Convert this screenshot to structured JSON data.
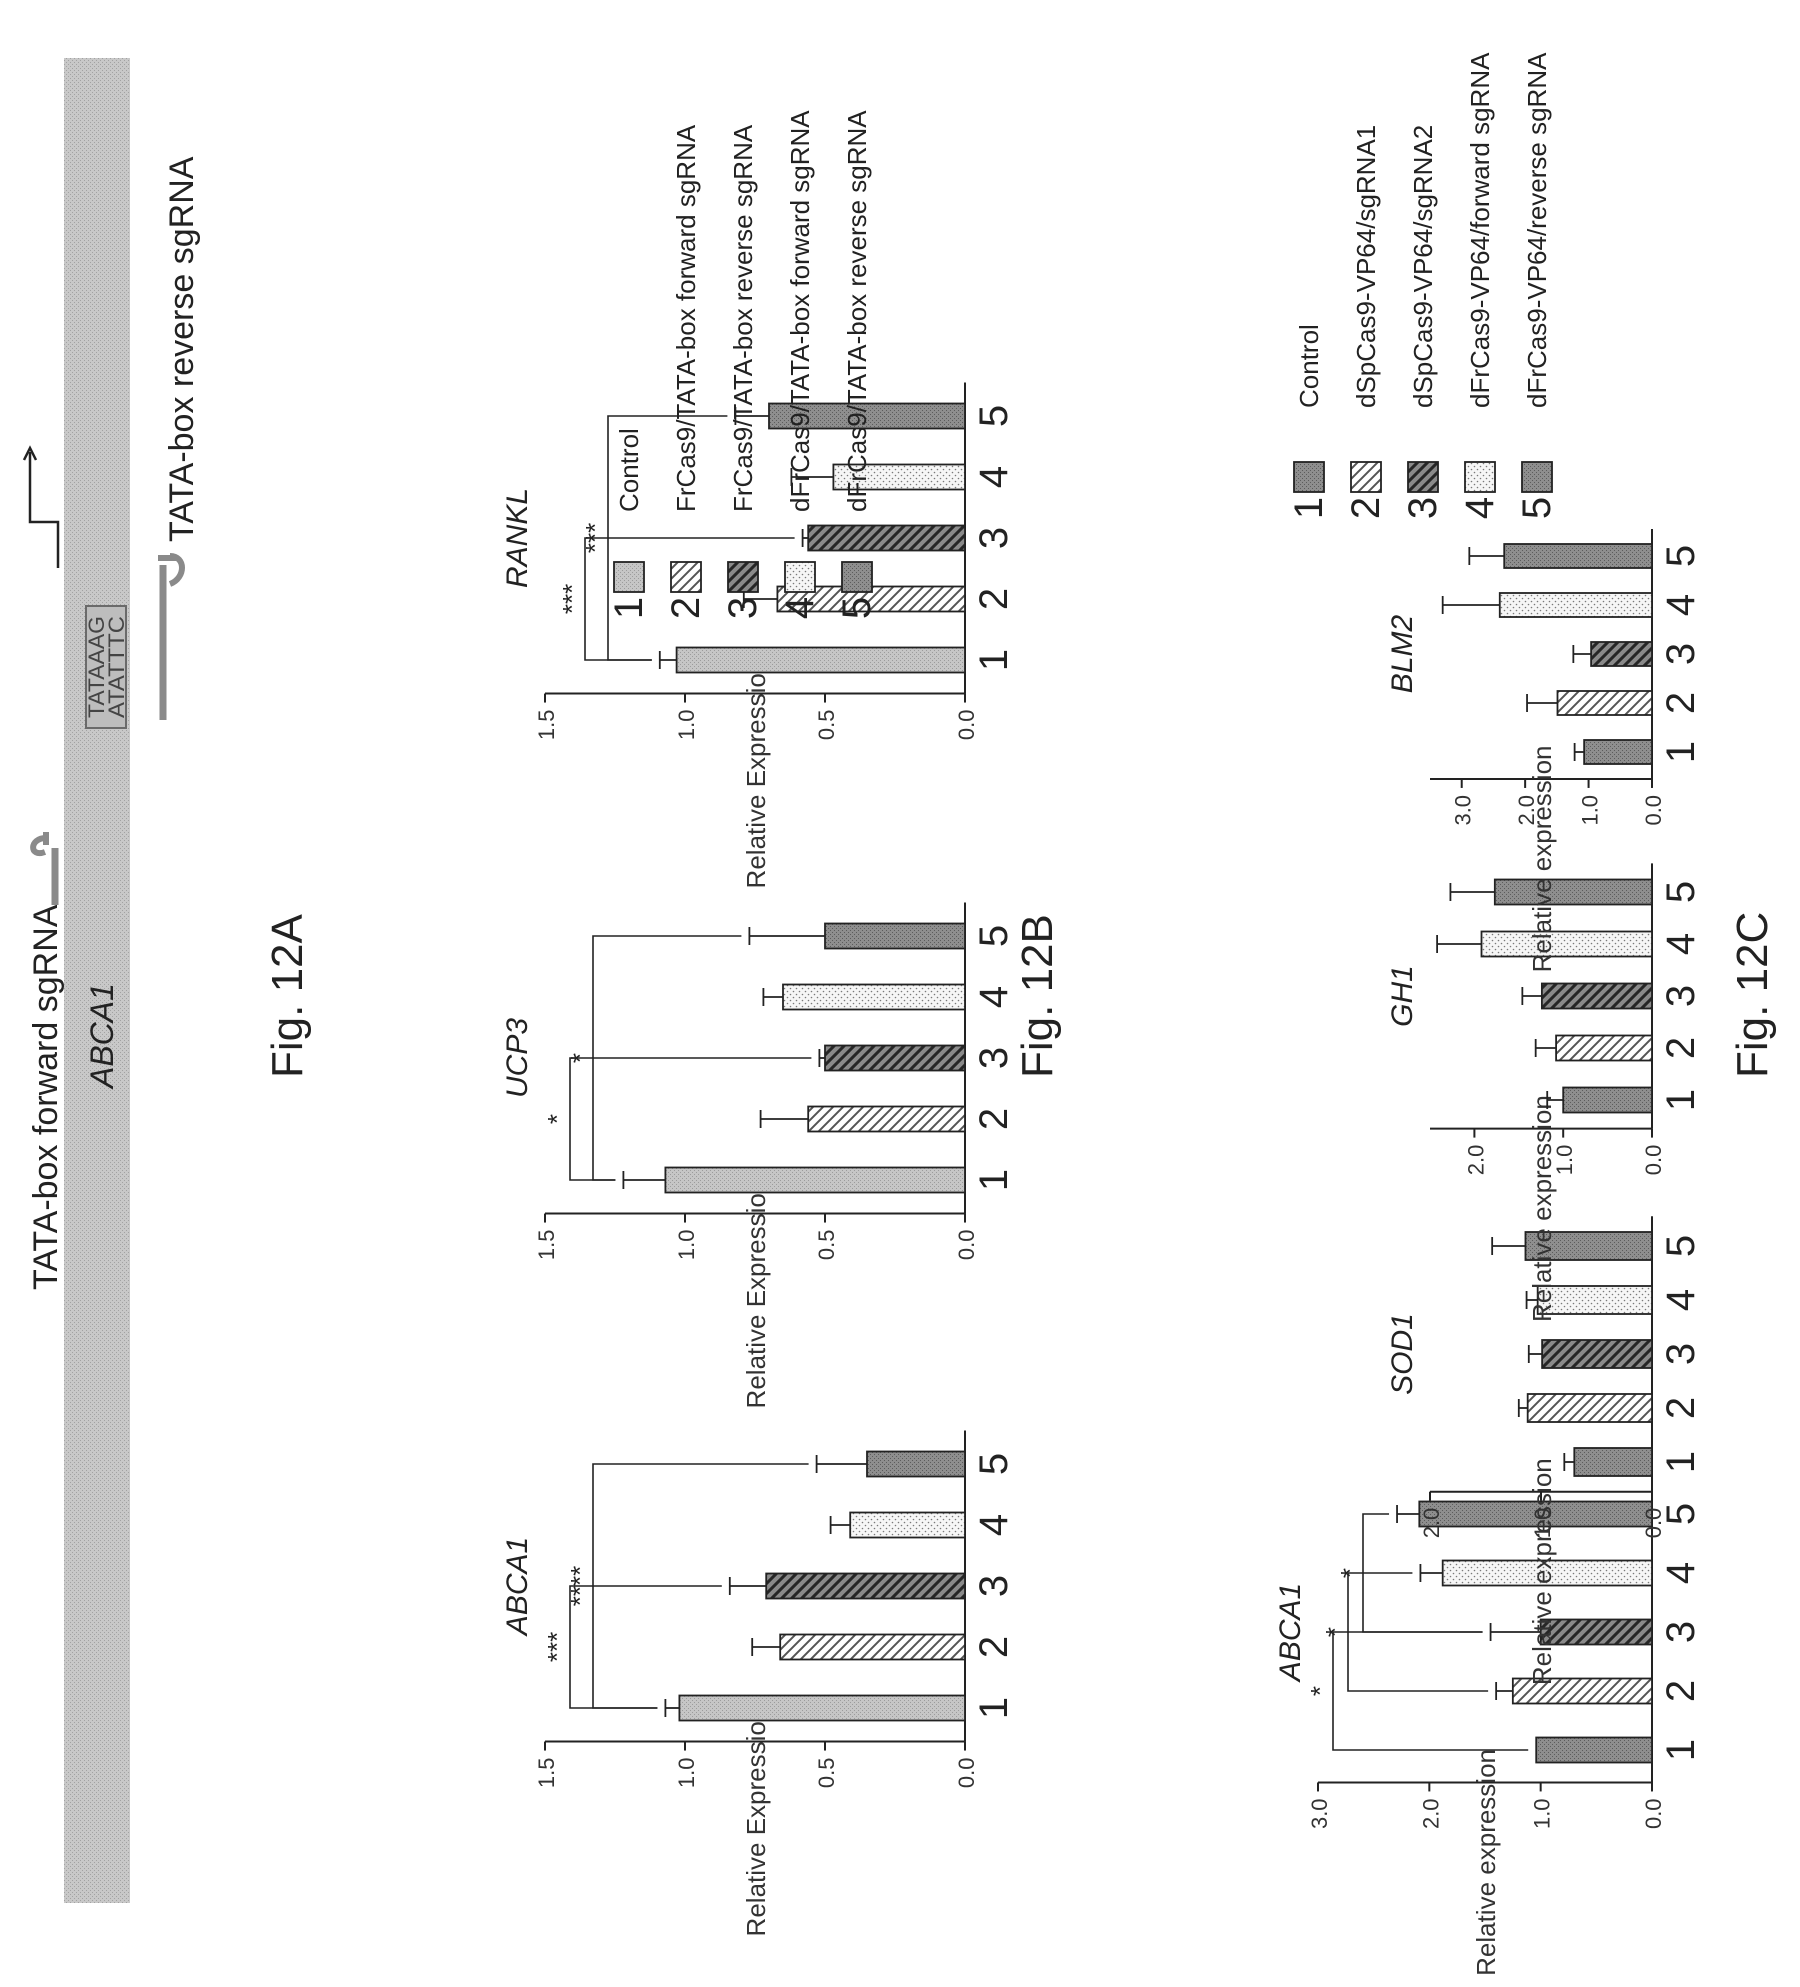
{
  "fig12a": {
    "forward_label": "TATA-box forward sgRNA",
    "gene_label": "ABCA1",
    "seq_top": "TATAAAG",
    "seq_bottom": "ATATTTC",
    "reverse_label": "TATA-box reverse sgRNA",
    "caption": "Fig. 12A"
  },
  "fig12b": {
    "caption": "Fig. 12B",
    "legend": [
      {
        "num": "1",
        "label": "Control",
        "pattern": "light"
      },
      {
        "num": "2",
        "label": "FrCas9/TATA-box forward sgRNA",
        "pattern": "hatch"
      },
      {
        "num": "3",
        "label": "FrCas9/TATA-box reverse sgRNA",
        "pattern": "darkhatch"
      },
      {
        "num": "4",
        "label": "dFrCas9/TATA-box forward sgRNA",
        "pattern": "dots"
      },
      {
        "num": "5",
        "label": "dFrCas9/TATA-box reverse sgRNA",
        "pattern": "dark"
      }
    ]
  },
  "fig12c": {
    "caption": "Fig. 12C",
    "legend": [
      {
        "num": "1",
        "label": "Control",
        "pattern": "dark"
      },
      {
        "num": "2",
        "label": "dSpCas9-VP64/sgRNA1",
        "pattern": "hatch"
      },
      {
        "num": "3",
        "label": "dSpCas9-VP64/sgRNA2",
        "pattern": "darkhatch"
      },
      {
        "num": "4",
        "label": "dFrCas9-VP64/forward sgRNA",
        "pattern": "dots"
      },
      {
        "num": "5",
        "label": "dFrCas9-VP64/reverse sgRNA",
        "pattern": "dark"
      }
    ]
  },
  "chart_data": [
    {
      "panel": "12B",
      "type": "bar",
      "title": "ABCA1",
      "ylabel": "Relative Expression",
      "categories": [
        "1",
        "2",
        "3",
        "4",
        "5"
      ],
      "values": [
        1.02,
        0.66,
        0.71,
        0.41,
        0.35
      ],
      "errors": [
        0.05,
        0.1,
        0.13,
        0.07,
        0.18
      ],
      "patterns": [
        "light",
        "hatch",
        "darkhatch",
        "dots",
        "dark"
      ],
      "ylim": [
        0,
        1.5
      ],
      "yticks": [
        "0.0",
        "0.5",
        "1.0",
        "1.5"
      ],
      "significance": [
        {
          "label": "***",
          "from": 1,
          "to": 3
        },
        {
          "label": "****",
          "from": 1,
          "to": 5
        }
      ]
    },
    {
      "panel": "12B",
      "type": "bar",
      "title": "UCP3",
      "ylabel": "Relative Expression",
      "categories": [
        "1",
        "2",
        "3",
        "4",
        "5"
      ],
      "values": [
        1.07,
        0.56,
        0.5,
        0.65,
        0.5
      ],
      "errors": [
        0.15,
        0.17,
        0.02,
        0.07,
        0.27
      ],
      "patterns": [
        "light",
        "hatch",
        "darkhatch",
        "dots",
        "dark"
      ],
      "ylim": [
        0,
        1.5
      ],
      "yticks": [
        "0.0",
        "0.5",
        "1.0",
        "1.5"
      ],
      "significance": [
        {
          "label": "*",
          "from": 1,
          "to": 3
        },
        {
          "label": "*",
          "from": 1,
          "to": 5
        }
      ]
    },
    {
      "panel": "12B",
      "type": "bar",
      "title": "RANKL",
      "ylabel": "Relative Expression",
      "categories": [
        "1",
        "2",
        "3",
        "4",
        "5"
      ],
      "values": [
        1.03,
        0.67,
        0.56,
        0.47,
        0.7
      ],
      "errors": [
        0.06,
        0.12,
        0.02,
        0.15,
        0.12
      ],
      "patterns": [
        "light",
        "hatch",
        "darkhatch",
        "dots",
        "dark"
      ],
      "ylim": [
        0,
        1.5
      ],
      "yticks": [
        "0.0",
        "0.5",
        "1.0",
        "1.5"
      ],
      "significance": [
        {
          "label": "***",
          "from": 1,
          "to": 3
        },
        {
          "label": "***",
          "from": 1,
          "to": 5
        }
      ]
    },
    {
      "panel": "12C",
      "type": "bar",
      "title": "ABCA1",
      "ylabel": "Relative expression",
      "categories": [
        "1",
        "2",
        "3",
        "4",
        "5"
      ],
      "values": [
        1.04,
        1.25,
        1.0,
        1.88,
        2.09
      ],
      "errors": [
        0.0,
        0.15,
        0.45,
        0.2,
        0.2
      ],
      "patterns": [
        "dark",
        "hatch",
        "darkhatch",
        "dots",
        "dark"
      ],
      "ylim": [
        0,
        3
      ],
      "yticks": [
        "0.0",
        "1.0",
        "2.0",
        "3.0"
      ],
      "significance": [
        {
          "label": "*",
          "from": 1,
          "to": 3
        },
        {
          "label": "*",
          "from": 2,
          "to": 4
        },
        {
          "label": "*",
          "from": 3,
          "to": 5
        }
      ]
    },
    {
      "panel": "12C",
      "type": "bar",
      "title": "SOD1",
      "ylabel": "Relative expression",
      "categories": [
        "1",
        "2",
        "3",
        "4",
        "5"
      ],
      "values": [
        0.7,
        1.12,
        0.99,
        1.03,
        1.14
      ],
      "errors": [
        0.09,
        0.08,
        0.12,
        0.1,
        0.3
      ],
      "patterns": [
        "dark",
        "hatch",
        "darkhatch",
        "dots",
        "dark"
      ],
      "ylim": [
        0,
        2
      ],
      "yticks": [
        "0.0",
        "1.0",
        "2.0"
      ],
      "significance": []
    },
    {
      "panel": "12C",
      "type": "bar",
      "title": "GH1",
      "ylabel": "Relative expression",
      "categories": [
        "1",
        "2",
        "3",
        "4",
        "5"
      ],
      "values": [
        1.0,
        1.08,
        1.24,
        1.92,
        1.77
      ],
      "errors": [
        0.18,
        0.23,
        0.22,
        0.5,
        0.5
      ],
      "patterns": [
        "dark",
        "hatch",
        "darkhatch",
        "dots",
        "dark"
      ],
      "ylim": [
        0,
        2.5
      ],
      "yticks": [
        "0.0",
        "1.0",
        "2.0"
      ],
      "significance": []
    },
    {
      "panel": "12C",
      "type": "bar",
      "title": "BLM2",
      "ylabel": "Relative expression",
      "categories": [
        "1",
        "2",
        "3",
        "4",
        "5"
      ],
      "values": [
        1.07,
        1.49,
        0.96,
        2.4,
        2.33
      ],
      "errors": [
        0.15,
        0.48,
        0.28,
        0.9,
        0.55
      ],
      "patterns": [
        "dark",
        "hatch",
        "darkhatch",
        "dots",
        "dark"
      ],
      "ylim": [
        0,
        3.5
      ],
      "yticks": [
        "0.0",
        "1.0",
        "2.0",
        "3.0"
      ],
      "significance": []
    }
  ]
}
